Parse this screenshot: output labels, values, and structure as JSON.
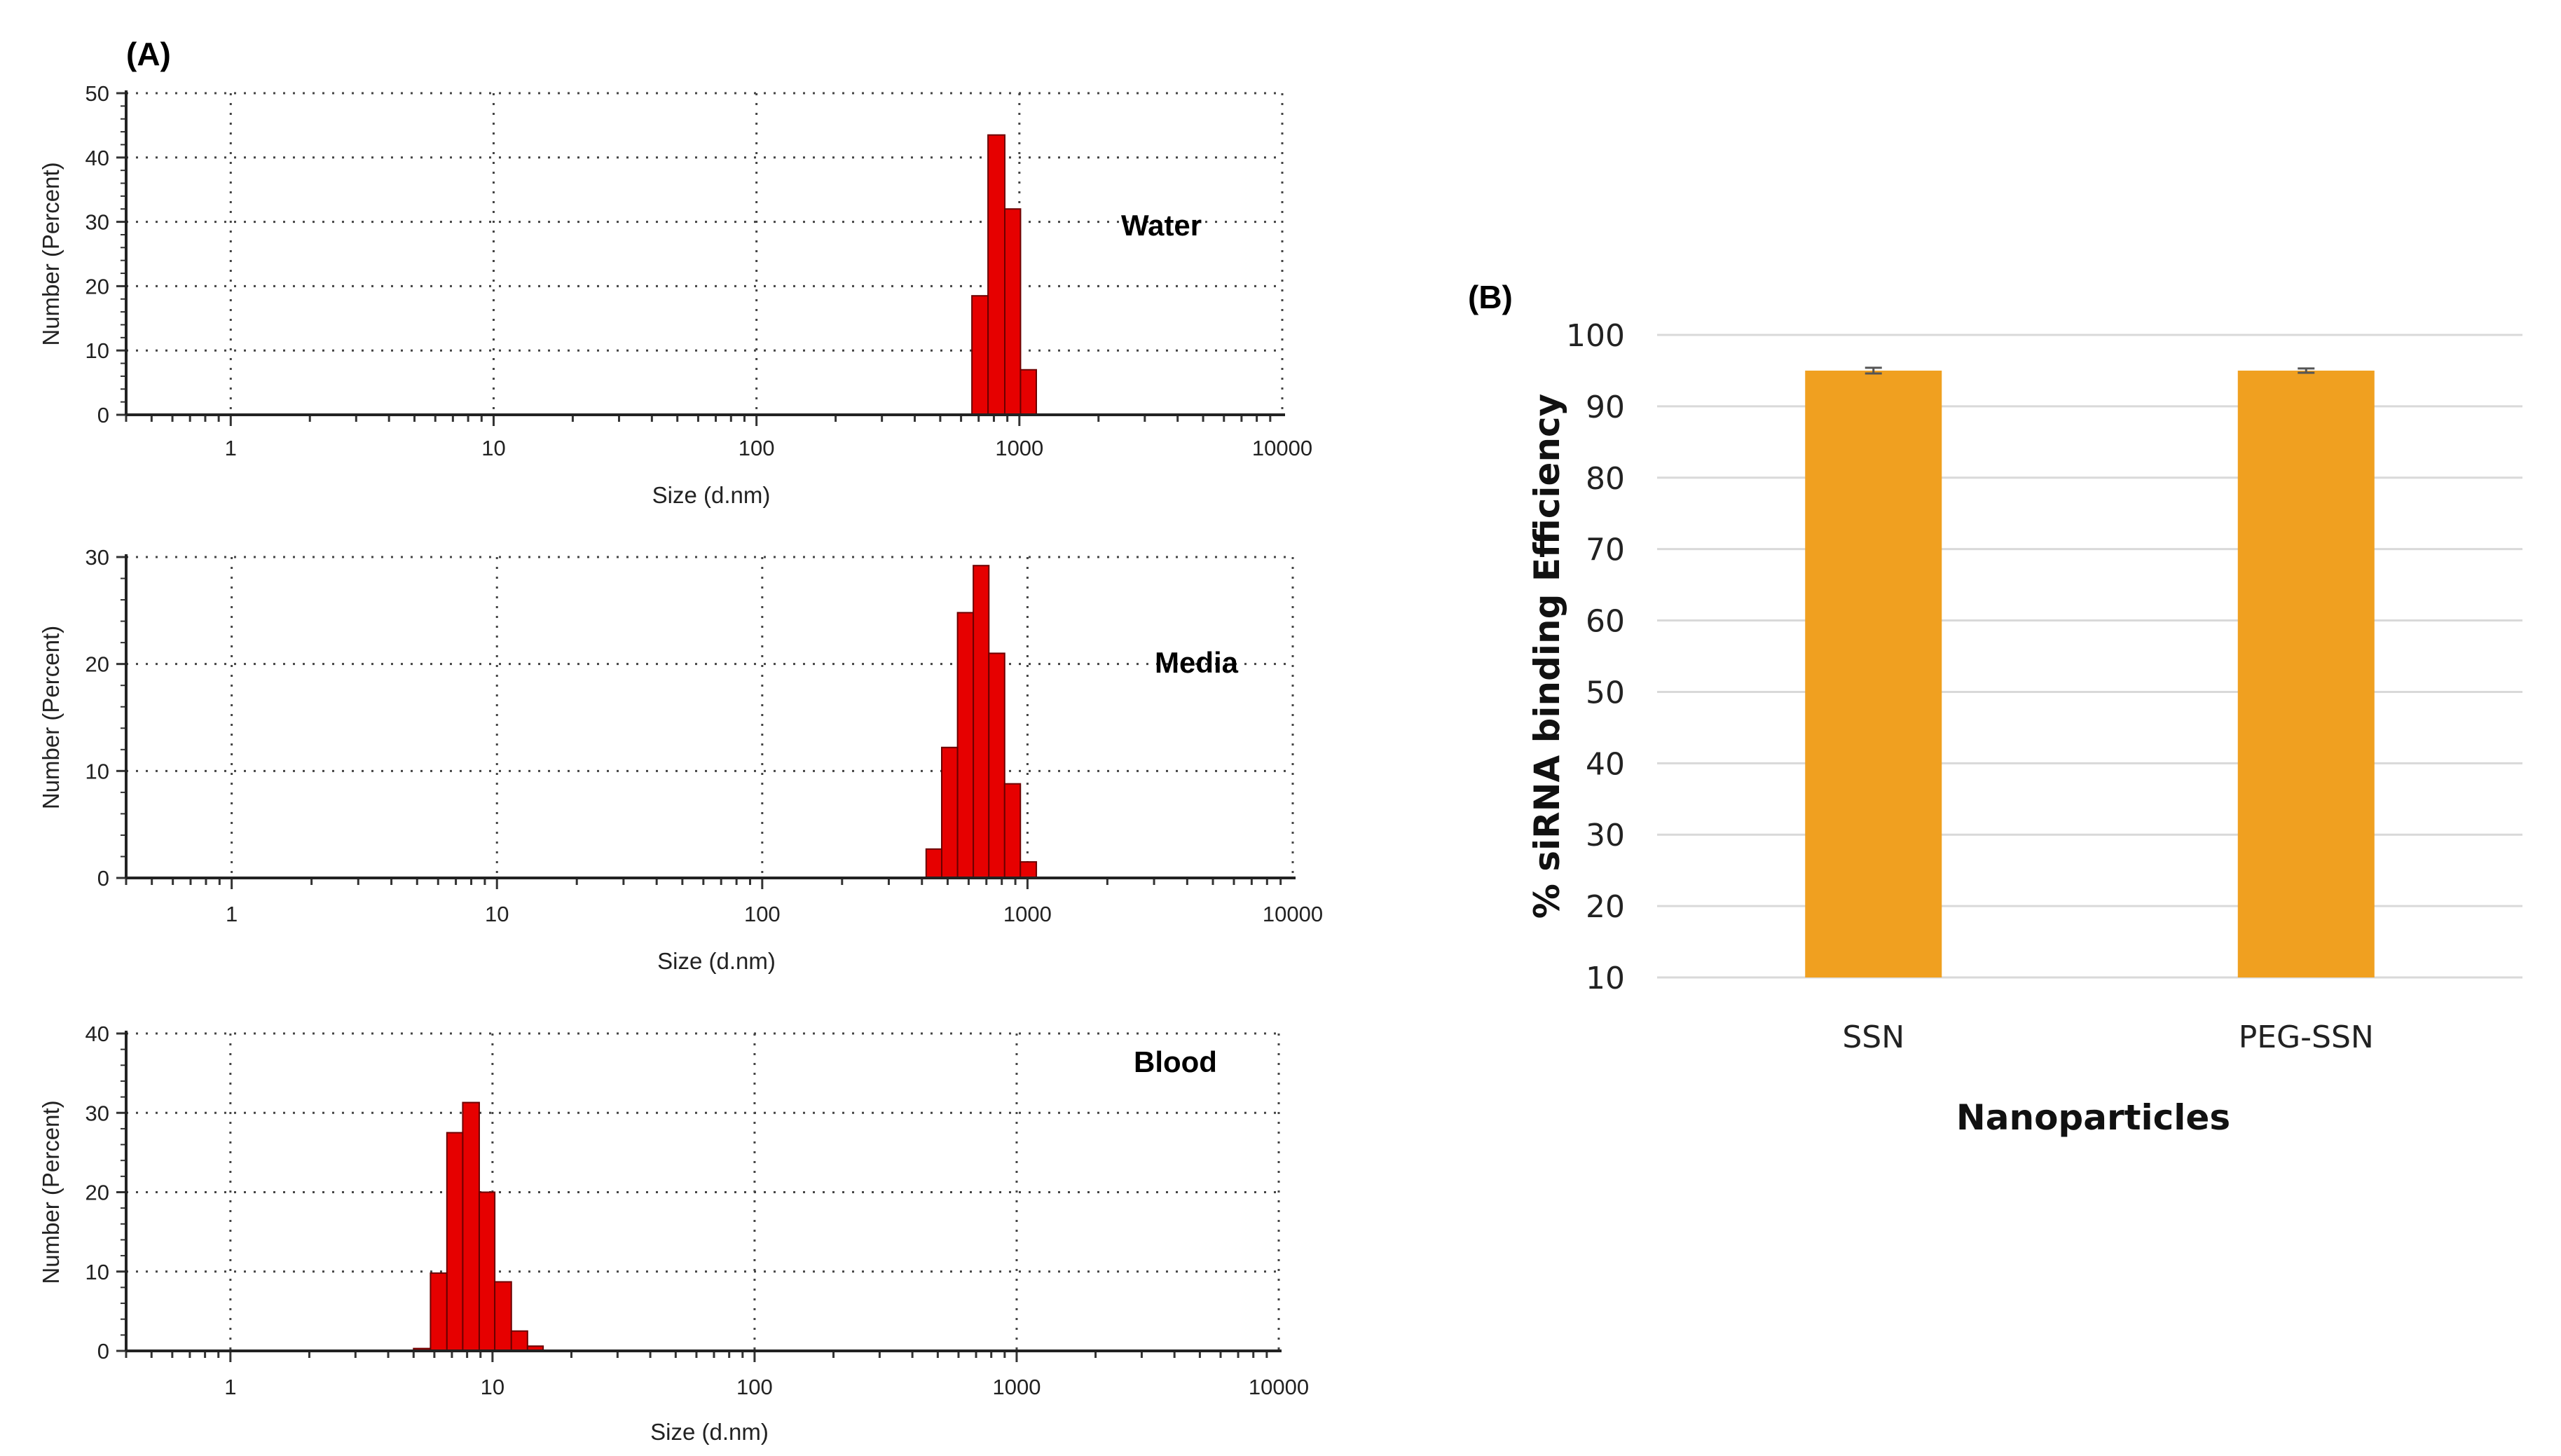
{
  "panels": {
    "a_label": "(A)",
    "b_label": "(B)"
  },
  "colors": {
    "histogram_fill": "#e60000",
    "histogram_edge": "#6b0000",
    "bar_fill": "#f0a020",
    "grid_dotted": "#444444",
    "grid_solid": "#d9d9d9",
    "error_bar": "#555555"
  },
  "chart_data": [
    {
      "id": "water",
      "type": "bar",
      "title": "Water",
      "xlabel": "Size (d.nm)",
      "ylabel": "Number (Percent)",
      "xscale": "log",
      "xlim": [
        0.4,
        10000
      ],
      "ylim": [
        0,
        50
      ],
      "yticks": [
        0,
        10,
        20,
        30,
        40,
        50
      ],
      "xticks": [
        1,
        10,
        100,
        1000,
        10000
      ],
      "xtick_labels": [
        "1",
        "10",
        "100",
        "1000",
        "10000"
      ],
      "bins": [
        {
          "x0": 660,
          "x1": 760,
          "value": 18.5
        },
        {
          "x0": 760,
          "x1": 880,
          "value": 43.5
        },
        {
          "x0": 880,
          "x1": 1010,
          "value": 32
        },
        {
          "x0": 1010,
          "x1": 1160,
          "value": 7
        }
      ]
    },
    {
      "id": "media",
      "type": "bar",
      "title": "Media",
      "xlabel": "Size (d.nm)",
      "ylabel": "Number (Percent)",
      "xscale": "log",
      "xlim": [
        0.4,
        10000
      ],
      "ylim": [
        0,
        30
      ],
      "yticks": [
        0,
        10,
        20,
        30
      ],
      "xticks": [
        1,
        10,
        100,
        1000,
        10000
      ],
      "xtick_labels": [
        "1",
        "10",
        "100",
        "1000",
        "10000"
      ],
      "bins": [
        {
          "x0": 415,
          "x1": 475,
          "value": 2.7
        },
        {
          "x0": 475,
          "x1": 545,
          "value": 12.2
        },
        {
          "x0": 545,
          "x1": 625,
          "value": 24.8
        },
        {
          "x0": 625,
          "x1": 715,
          "value": 29.2
        },
        {
          "x0": 715,
          "x1": 820,
          "value": 21
        },
        {
          "x0": 820,
          "x1": 940,
          "value": 8.8
        },
        {
          "x0": 940,
          "x1": 1080,
          "value": 1.5
        }
      ]
    },
    {
      "id": "blood",
      "type": "bar",
      "title": "Blood",
      "xlabel": "Size (d.nm)",
      "ylabel": "Number (Percent)",
      "xscale": "log",
      "xlim": [
        0.4,
        10000
      ],
      "ylim": [
        0,
        40
      ],
      "yticks": [
        0,
        10,
        20,
        30,
        40
      ],
      "xticks": [
        1,
        10,
        100,
        1000,
        10000
      ],
      "xtick_labels": [
        "1",
        "10",
        "100",
        "1000",
        "10000"
      ],
      "bins": [
        {
          "x0": 5.0,
          "x1": 5.8,
          "value": 0.3
        },
        {
          "x0": 5.8,
          "x1": 6.7,
          "value": 9.8
        },
        {
          "x0": 6.7,
          "x1": 7.7,
          "value": 27.5
        },
        {
          "x0": 7.7,
          "x1": 8.9,
          "value": 31.3
        },
        {
          "x0": 8.9,
          "x1": 10.2,
          "value": 20
        },
        {
          "x0": 10.2,
          "x1": 11.8,
          "value": 8.7
        },
        {
          "x0": 11.8,
          "x1": 13.6,
          "value": 2.5
        },
        {
          "x0": 13.6,
          "x1": 15.6,
          "value": 0.6
        }
      ]
    },
    {
      "id": "binding",
      "type": "bar",
      "title": "",
      "xlabel": "Nanoparticles",
      "ylabel": "% siRNA binding Efficiency",
      "categories": [
        "SSN",
        "PEG-SSN"
      ],
      "values": [
        95,
        95
      ],
      "errors": [
        0.4,
        0.3
      ],
      "ylim": [
        10,
        100
      ],
      "yticks": [
        10,
        20,
        30,
        40,
        50,
        60,
        70,
        80,
        90,
        100
      ],
      "ytick_labels": [
        "10",
        "20",
        "30",
        "40",
        "50",
        "60",
        "70",
        "80",
        "90",
        "100"
      ]
    }
  ]
}
